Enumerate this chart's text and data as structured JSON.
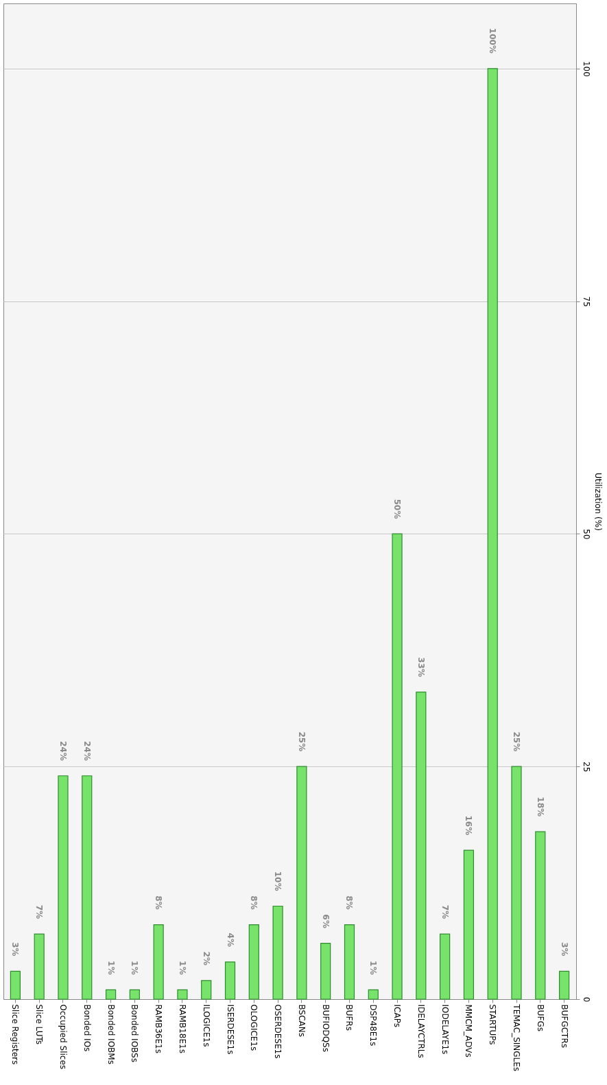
{
  "chart_data": {
    "type": "bar",
    "ylabel": "Utilization (%)",
    "categories": [
      "Slice Registers",
      "Slice LUTs",
      "Occupied Slices",
      "Bonded IOs",
      "Bonded IOBMs",
      "Bonded IOBSs",
      "RAMB36E1s",
      "RAMB18E1s",
      "ILOGICE1s",
      "ISERDESE1s",
      "OLOGICE1s",
      "OSERDESE1s",
      "BSCANs",
      "BUFIODQSs",
      "BUFRs",
      "DSP48E1s",
      "ICAPs",
      "IDELAYCTRLs",
      "IODELAYE1s",
      "MMCM_ADVs",
      "STARTUPs",
      "TEMAC_SINGLEs",
      "BUFGs",
      "BUFGCTRs"
    ],
    "values": [
      3,
      7,
      24,
      24,
      1,
      1,
      8,
      1,
      2,
      4,
      8,
      10,
      25,
      6,
      8,
      1,
      50,
      33,
      7,
      16,
      100,
      25,
      18,
      3
    ],
    "value_labels": [
      "3%",
      "7%",
      "24%",
      "24%",
      "1%",
      "1%",
      "8%",
      "1%",
      "2%",
      "4%",
      "8%",
      "10%",
      "25%",
      "6%",
      "8%",
      "1%",
      "50%",
      "33%",
      "7%",
      "16%",
      "100%",
      "25%",
      "18%",
      "3%"
    ],
    "color": "#77e36b",
    "ylim": [
      0,
      107
    ],
    "yticks": [
      0,
      25,
      50,
      75,
      100
    ],
    "grid": "y"
  }
}
